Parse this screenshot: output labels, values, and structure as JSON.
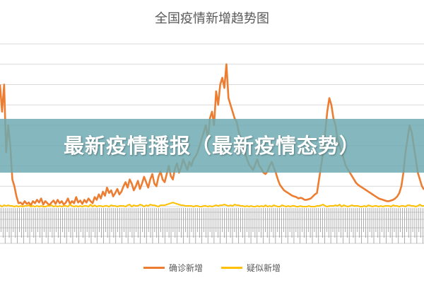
{
  "chart_data": {
    "type": "line",
    "title": "全国疫情新增趋势图",
    "banner_text": "最新疫情播报（最新疫情态势）",
    "xlabel": "",
    "ylabel": "",
    "grid": true,
    "legend_position": "bottom",
    "series": [
      {
        "name": "确诊新增",
        "color": "#ED7D31",
        "values": [
          180,
          140,
          180,
          80,
          120,
          90,
          40,
          30,
          15,
          5,
          6,
          3,
          8,
          4,
          6,
          2,
          8,
          5,
          10,
          6,
          12,
          3,
          8,
          5,
          2,
          6,
          9,
          4,
          10,
          5,
          8,
          3,
          6,
          12,
          4,
          8,
          5,
          14,
          6,
          9,
          4,
          10,
          6,
          12,
          8,
          5,
          14,
          10,
          18,
          12,
          22,
          16,
          28,
          20,
          24,
          15,
          20,
          26,
          18,
          22,
          30,
          36,
          28,
          40,
          34,
          24,
          30,
          38,
          26,
          34,
          44,
          36,
          28,
          40,
          48,
          34,
          30,
          44,
          52,
          40,
          36,
          48,
          60,
          45,
          40,
          56,
          64,
          50,
          58,
          70,
          62,
          54,
          66,
          60,
          70,
          74,
          80,
          90,
          100,
          110,
          120,
          100,
          130,
          140,
          120,
          170,
          150,
          180,
          190,
          175,
          210,
          160,
          150,
          140,
          130,
          125,
          110,
          100,
          90,
          80,
          70,
          62,
          58,
          54,
          62,
          70,
          60,
          56,
          50,
          48,
          52,
          60,
          66,
          58,
          50,
          40,
          32,
          28,
          24,
          22,
          20,
          18,
          16,
          15,
          14,
          12,
          13,
          12,
          10,
          10,
          11,
          12,
          15,
          18,
          20,
          40,
          60,
          80,
          110,
          140,
          160,
          150,
          130,
          120,
          100,
          90,
          80,
          70,
          60,
          55,
          50,
          45,
          40,
          35,
          32,
          30,
          28,
          26,
          24,
          22,
          20,
          18,
          16,
          14,
          12,
          11,
          10,
          9,
          8,
          8,
          9,
          10,
          12,
          15,
          20,
          30,
          50,
          80,
          100,
          120,
          110,
          90,
          70,
          50,
          40,
          30,
          25
        ]
      },
      {
        "name": "疑似新增",
        "color": "#FFC000",
        "values": [
          2,
          0,
          2,
          1,
          2,
          1,
          1,
          0,
          1,
          0,
          1,
          0,
          1,
          1,
          2,
          0,
          1,
          0,
          1,
          0,
          1,
          0,
          0,
          1,
          1,
          2,
          0,
          1,
          0,
          1,
          0,
          1,
          1,
          0,
          3,
          1,
          0,
          1,
          0,
          1,
          0,
          1,
          1,
          0,
          3,
          0,
          2,
          0,
          1,
          1,
          0,
          1,
          1,
          0,
          2,
          1,
          1,
          0,
          1,
          1,
          1,
          0,
          2,
          3,
          0,
          2,
          1,
          1,
          3,
          2,
          0,
          2,
          1,
          3,
          2,
          2,
          1,
          0,
          2,
          2,
          2,
          3,
          4,
          5,
          6,
          5,
          4,
          3,
          2,
          2,
          1,
          1,
          1,
          1,
          0,
          1,
          1,
          0,
          0,
          1,
          1,
          0,
          1,
          0,
          1,
          2,
          1,
          2,
          2,
          3,
          2,
          1,
          2,
          1,
          3,
          2,
          2,
          1,
          1,
          0,
          1,
          0,
          1,
          0,
          0,
          1,
          0,
          1,
          0,
          2,
          0,
          1,
          0,
          2,
          1,
          0,
          0,
          2,
          1,
          0,
          1,
          0,
          1,
          1,
          0,
          0,
          1,
          0,
          0,
          0,
          1,
          0,
          0,
          0,
          1,
          1,
          2,
          3,
          1,
          0,
          1,
          1,
          1,
          2,
          1,
          3,
          0,
          2,
          1,
          0,
          1,
          2,
          1,
          1,
          1,
          0,
          0,
          1,
          0,
          2,
          1,
          0,
          1,
          1,
          0,
          1,
          0,
          1,
          1,
          1,
          0,
          2,
          1,
          1,
          0,
          1,
          1,
          0,
          2,
          2,
          1,
          1,
          0,
          1,
          3,
          1,
          1
        ]
      }
    ],
    "ylim": [
      0,
      240
    ],
    "gridlines": [
      0,
      30,
      60,
      90,
      120,
      150,
      180,
      210,
      240
    ],
    "x_tick_count": 207
  }
}
